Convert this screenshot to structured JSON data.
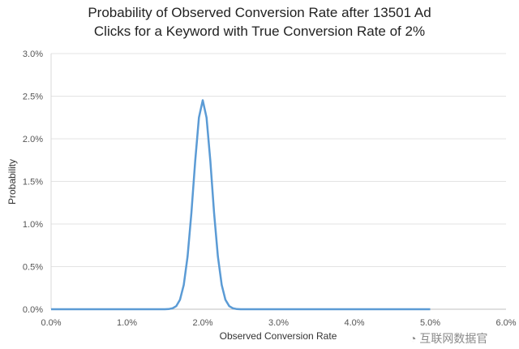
{
  "chart_data": {
    "type": "line",
    "title": "Probability of Observed Conversion Rate after 13501 Ad Clicks for a Keyword with True Conversion Rate of 2%",
    "xlabel": "Observed Conversion Rate",
    "ylabel": "Probability",
    "xlim": [
      0,
      6
    ],
    "ylim": [
      0,
      3
    ],
    "x_unit": "%",
    "y_unit": "%",
    "x_ticks": [
      "0.0%",
      "1.0%",
      "2.0%",
      "3.0%",
      "4.0%",
      "5.0%",
      "6.0%"
    ],
    "y_ticks": [
      "0.0%",
      "0.5%",
      "1.0%",
      "1.5%",
      "2.0%",
      "2.5%",
      "3.0%"
    ],
    "grid": true,
    "legend": "none",
    "line_color": "#5b9bd5",
    "series": [
      {
        "x": [
          0,
          1.5,
          1.55,
          1.6,
          1.65,
          1.7,
          1.75,
          1.8,
          1.85,
          1.9,
          1.95,
          2.0,
          2.05,
          2.1,
          2.15,
          2.2,
          2.25,
          2.3,
          2.35,
          2.4,
          2.45,
          2.5,
          5.0
        ],
        "y": [
          0,
          0.0,
          0.002,
          0.01,
          0.036,
          0.11,
          0.285,
          0.618,
          1.129,
          1.738,
          2.249,
          2.452,
          2.249,
          1.738,
          1.129,
          0.618,
          0.285,
          0.11,
          0.036,
          0.01,
          0.002,
          0.0,
          0
        ]
      }
    ]
  },
  "watermark": "互联网数据官"
}
